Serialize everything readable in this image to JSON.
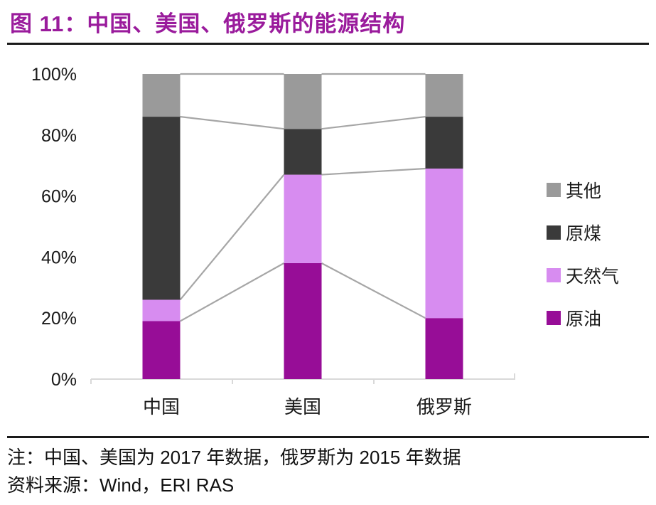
{
  "header": {
    "title": "图 11：中国、美国、俄罗斯的能源结构"
  },
  "chart_data": {
    "type": "bar",
    "stacked": true,
    "unit": "%",
    "categories": [
      "中国",
      "美国",
      "俄罗斯"
    ],
    "series": [
      {
        "name": "原油",
        "color": "#970d97",
        "values": [
          19,
          38,
          20
        ]
      },
      {
        "name": "天然气",
        "color": "#d78cf0",
        "values": [
          7,
          29,
          49
        ]
      },
      {
        "name": "原煤",
        "color": "#3a3a3a",
        "values": [
          60,
          15,
          17
        ]
      },
      {
        "name": "其他",
        "color": "#9a9a9a",
        "values": [
          14,
          18,
          14
        ]
      }
    ],
    "ylim": [
      0,
      100
    ],
    "ytick_step": 20,
    "ytick_labels": [
      "0%",
      "20%",
      "40%",
      "60%",
      "80%",
      "100%"
    ],
    "grid": false,
    "legend": {
      "position": "right",
      "order_top_to_bottom": [
        "其他",
        "原煤",
        "天然气",
        "原油"
      ]
    },
    "colors": {
      "connector": "#a6a6a6",
      "axis_line": "#d9d9d9",
      "label_text": "#1a1a1a",
      "title_accent": "#9a1b9c"
    }
  },
  "footer": {
    "note": "注：中国、美国为 2017 年数据，俄罗斯为 2015 年数据",
    "source": "资料来源：Wind，ERI RAS"
  }
}
